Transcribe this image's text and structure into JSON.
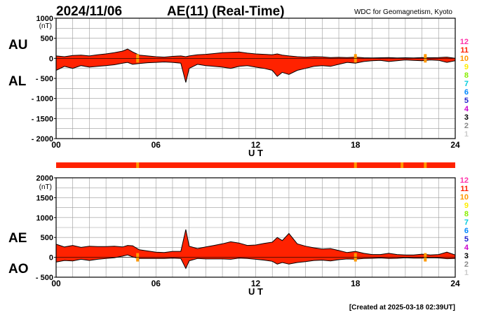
{
  "header": {
    "date": "2024/11/06",
    "title": "AE(11) (Real-Time)",
    "org": "WDC for Geomagnetism, Kyoto"
  },
  "footer": {
    "created": "[Created at 2025-03-18 02:39UT]"
  },
  "status_legend": [
    {
      "label": "12",
      "color": "#ff33aa"
    },
    {
      "label": "11",
      "color": "#ff2200"
    },
    {
      "label": "10",
      "color": "#ff9900"
    },
    {
      "label": "9",
      "color": "#ffee00"
    },
    {
      "label": "8",
      "color": "#88ee00"
    },
    {
      "label": "7",
      "color": "#00ccdd"
    },
    {
      "label": "6",
      "color": "#0088ff"
    },
    {
      "label": "5",
      "color": "#2222cc"
    },
    {
      "label": "4",
      "color": "#cc00cc"
    },
    {
      "label": "3",
      "color": "#000000"
    },
    {
      "label": "2",
      "color": "#888888"
    },
    {
      "label": "1",
      "color": "#cccccc"
    }
  ],
  "chart_data": [
    {
      "type": "area",
      "panel": "AU/AL",
      "side_labels": [
        "AU",
        "AL"
      ],
      "unit": "(nT)",
      "xlabel": "U T",
      "xlim": [
        0,
        24
      ],
      "ylim": [
        -2000,
        1000
      ],
      "yticks": [
        1000,
        500,
        0,
        -500,
        -1000,
        -1500,
        -2000
      ],
      "ytick_labels": [
        "1000",
        "500",
        "0",
        "- 500",
        "- 1000",
        "- 1500",
        "- 2000"
      ],
      "xticks": [
        0,
        6,
        12,
        18,
        24
      ],
      "xtick_labels": [
        "00",
        "06",
        "12",
        "18",
        "24"
      ],
      "grid": true,
      "fill_color": "#ff2200",
      "x_hours": [
        0,
        0.5,
        1,
        1.5,
        2,
        2.5,
        3,
        3.5,
        4,
        4.3,
        4.6,
        5,
        5.5,
        6,
        6.5,
        7,
        7.5,
        7.8,
        8,
        8.5,
        9,
        9.5,
        10,
        10.5,
        11,
        11.5,
        12,
        12.5,
        13,
        13.3,
        13.6,
        14,
        14.5,
        15,
        15.5,
        16,
        16.5,
        17,
        17.5,
        18,
        18.5,
        19,
        19.5,
        20,
        20.5,
        21,
        21.5,
        22,
        22.5,
        23,
        23.5,
        24
      ],
      "series": [
        {
          "name": "AU",
          "values": [
            60,
            40,
            70,
            80,
            60,
            90,
            110,
            140,
            180,
            230,
            160,
            80,
            60,
            40,
            30,
            50,
            60,
            40,
            60,
            90,
            100,
            120,
            140,
            150,
            160,
            130,
            110,
            100,
            90,
            110,
            80,
            60,
            40,
            30,
            40,
            35,
            20,
            25,
            20,
            30,
            15,
            10,
            15,
            20,
            10,
            15,
            10,
            20,
            15,
            20,
            30,
            0
          ]
        },
        {
          "name": "AL",
          "values": [
            -300,
            -200,
            -250,
            -180,
            -220,
            -200,
            -180,
            -160,
            -120,
            -100,
            -150,
            -130,
            -110,
            -100,
            -90,
            -100,
            -120,
            -600,
            -250,
            -150,
            -180,
            -200,
            -220,
            -250,
            -200,
            -180,
            -220,
            -250,
            -300,
            -450,
            -350,
            -400,
            -300,
            -250,
            -200,
            -180,
            -200,
            -150,
            -100,
            -120,
            -80,
            -60,
            -50,
            -80,
            -60,
            -40,
            -50,
            -60,
            -40,
            -50,
            -100,
            -60
          ]
        }
      ],
      "status_bars": [
        {
          "x": 4.9,
          "color": "#ff9900"
        },
        {
          "x": 18.0,
          "color": "#ff9900"
        },
        {
          "x": 22.2,
          "color": "#ff9900"
        }
      ]
    },
    {
      "type": "area",
      "panel": "AE/AO",
      "side_labels": [
        "AE",
        "AO"
      ],
      "unit": "(nT)",
      "xlabel": "U T",
      "xlim": [
        0,
        24
      ],
      "ylim": [
        -500,
        2000
      ],
      "yticks": [
        2000,
        1500,
        1000,
        500,
        0,
        -500
      ],
      "ytick_labels": [
        "2000",
        "1500",
        "1000",
        "500",
        "0",
        "- 500"
      ],
      "xticks": [
        0,
        6,
        12,
        18,
        24
      ],
      "xtick_labels": [
        "00",
        "06",
        "12",
        "18",
        "24"
      ],
      "grid": true,
      "fill_color": "#ff2200",
      "x_hours": [
        0,
        0.5,
        1,
        1.5,
        2,
        2.5,
        3,
        3.5,
        4,
        4.3,
        4.6,
        5,
        5.5,
        6,
        6.5,
        7,
        7.5,
        7.8,
        8,
        8.5,
        9,
        9.5,
        10,
        10.5,
        11,
        11.5,
        12,
        12.5,
        13,
        13.3,
        13.6,
        14,
        14.5,
        15,
        15.5,
        16,
        16.5,
        17,
        17.5,
        18,
        18.5,
        19,
        19.5,
        20,
        20.5,
        21,
        21.5,
        22,
        22.5,
        23,
        23.5,
        24
      ],
      "series": [
        {
          "name": "AE",
          "values": [
            330,
            260,
            300,
            250,
            280,
            270,
            270,
            280,
            260,
            300,
            290,
            190,
            160,
            130,
            120,
            150,
            150,
            700,
            280,
            220,
            260,
            300,
            340,
            390,
            360,
            300,
            310,
            350,
            380,
            500,
            420,
            600,
            340,
            280,
            240,
            210,
            220,
            170,
            120,
            150,
            100,
            70,
            70,
            100,
            70,
            60,
            60,
            80,
            60,
            70,
            130,
            60
          ]
        },
        {
          "name": "AO",
          "values": [
            -120,
            -80,
            -90,
            -50,
            -80,
            -50,
            -30,
            -10,
            30,
            60,
            10,
            -30,
            -30,
            -30,
            -30,
            -20,
            -30,
            -280,
            -90,
            -30,
            -40,
            -40,
            -40,
            -50,
            -20,
            -30,
            -50,
            -70,
            -100,
            -170,
            -130,
            -170,
            -130,
            -110,
            -80,
            -70,
            -90,
            -60,
            -40,
            -45,
            -30,
            -25,
            -15,
            -30,
            -25,
            -12,
            -20,
            -20,
            -12,
            -15,
            -35,
            -30
          ]
        }
      ],
      "status_bars": [
        {
          "x": 4.9,
          "color": "#ff9900"
        },
        {
          "x": 18.0,
          "color": "#ff9900"
        },
        {
          "x": 22.2,
          "color": "#ff9900"
        }
      ],
      "top_status_strip": {
        "fill_color": "#ff2200",
        "marks": [
          {
            "x": 4.9,
            "color": "#ff9900"
          },
          {
            "x": 18.0,
            "color": "#ff9900"
          },
          {
            "x": 20.8,
            "color": "#ff9900"
          },
          {
            "x": 22.2,
            "color": "#ff9900"
          }
        ]
      }
    }
  ]
}
